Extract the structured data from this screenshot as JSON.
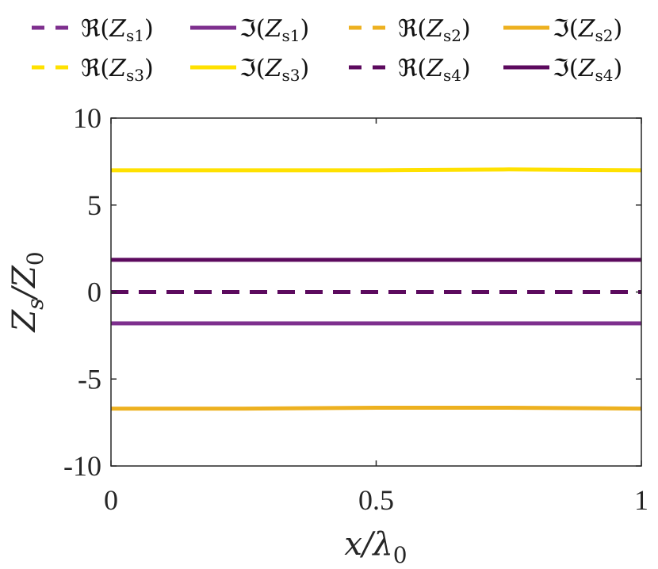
{
  "chart_data": {
    "type": "line",
    "xlabel": "x/λ0",
    "ylabel": "Zs/Z0",
    "xlim": [
      0,
      1
    ],
    "ylim": [
      -10,
      10
    ],
    "x_ticks": [
      "0",
      "0.5",
      "1"
    ],
    "y_ticks": [
      "10",
      "5",
      "0",
      "-5",
      "-10"
    ],
    "grid": false,
    "legend_placement": "top, outside, 4 columns",
    "x": [
      0,
      0.25,
      0.5,
      0.75,
      1
    ],
    "series": [
      {
        "name": "ℜ(Zs1)",
        "color": "#7E2F8E",
        "dash": true,
        "values": [
          0,
          0,
          0,
          0,
          0
        ]
      },
      {
        "name": "ℑ(Zs1)",
        "color": "#7E2F8E",
        "dash": false,
        "values": [
          -1.8,
          -1.8,
          -1.8,
          -1.8,
          -1.8
        ]
      },
      {
        "name": "ℜ(Zs2)",
        "color": "#EDB120",
        "dash": true,
        "values": [
          0,
          0,
          0,
          0,
          0
        ]
      },
      {
        "name": "ℑ(Zs2)",
        "color": "#EDB120",
        "dash": false,
        "values": [
          -6.7,
          -6.7,
          -6.65,
          -6.65,
          -6.7
        ]
      },
      {
        "name": "ℜ(Zs3)",
        "color": "#FFE100",
        "dash": true,
        "values": [
          0,
          0,
          0,
          0,
          0
        ]
      },
      {
        "name": "ℑ(Zs3)",
        "color": "#FFE100",
        "dash": false,
        "values": [
          7.0,
          7.0,
          7.0,
          7.05,
          7.0
        ]
      },
      {
        "name": "ℜ(Zs4)",
        "color": "#5C0A5E",
        "dash": true,
        "values": [
          0,
          0,
          0,
          0,
          0
        ]
      },
      {
        "name": "ℑ(Zs4)",
        "color": "#5C0A5E",
        "dash": false,
        "values": [
          1.85,
          1.85,
          1.85,
          1.85,
          1.85
        ]
      }
    ]
  }
}
